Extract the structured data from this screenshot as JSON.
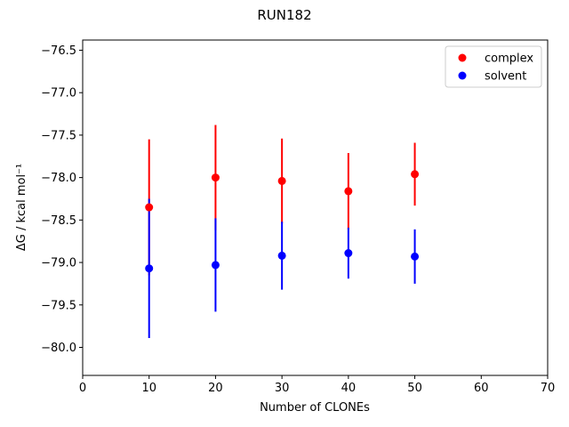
{
  "chart_data": {
    "type": "scatter",
    "title": "RUN182",
    "xlabel": "Number of CLONEs",
    "ylabel": "ΔG / kcal mol⁻¹",
    "xlim": [
      0,
      70
    ],
    "ylim": [
      -80.33,
      -76.38
    ],
    "xticks": [
      0,
      10,
      20,
      30,
      40,
      50,
      60,
      70
    ],
    "yticks": [
      -80.0,
      -79.5,
      -79.0,
      -78.5,
      -78.0,
      -77.5,
      -77.0,
      -76.5
    ],
    "ytick_labels": [
      "−80.0",
      "−79.5",
      "−79.0",
      "−78.5",
      "−78.0",
      "−77.5",
      "−77.0",
      "−76.5"
    ],
    "grid": false,
    "legend_position": "top-right",
    "series": [
      {
        "name": "complex",
        "color": "#ff0000",
        "x": [
          10,
          20,
          30,
          40,
          50
        ],
        "y": [
          -78.35,
          -78.0,
          -78.04,
          -78.16,
          -77.96
        ],
        "yerr": [
          0.8,
          0.62,
          0.5,
          0.45,
          0.37
        ]
      },
      {
        "name": "solvent",
        "color": "#0000ff",
        "x": [
          10,
          20,
          30,
          40,
          50
        ],
        "y": [
          -79.07,
          -79.03,
          -78.92,
          -78.89,
          -78.93
        ],
        "yerr": [
          0.82,
          0.55,
          0.4,
          0.3,
          0.32
        ]
      }
    ]
  }
}
